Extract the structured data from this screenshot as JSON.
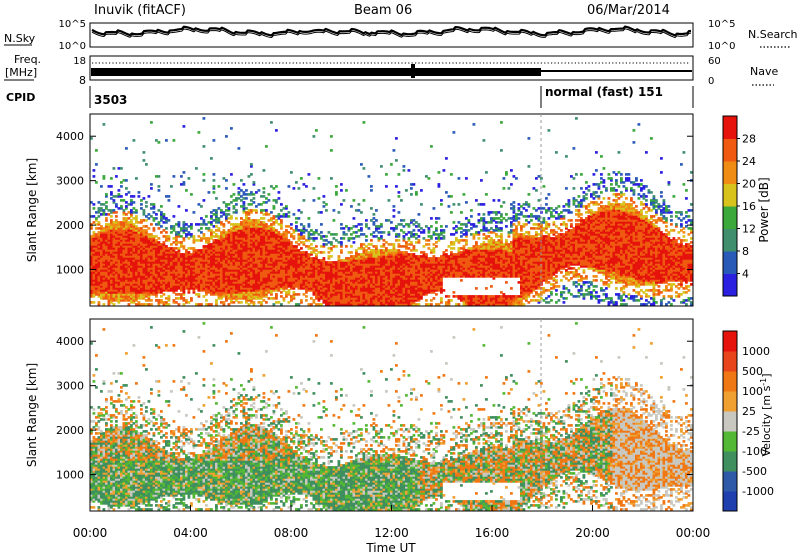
{
  "header": {
    "station": "Inuvik (fitACF)",
    "beam": "Beam 06",
    "date": "06/Mar/2014"
  },
  "panels": {
    "nsky_label": "N.Sky",
    "nsky_ticks": [
      "10^5",
      "10^0"
    ],
    "nsearch_label": "N.Search",
    "nsearch_ticks": [
      "10^5",
      "10^0"
    ],
    "freq_label": "Freq.",
    "freq_unit": "[MHz]",
    "freq_ticks": [
      "18",
      "8"
    ],
    "nave_label": "Nave",
    "nave_ticks": [
      "60",
      "0"
    ],
    "cpid_label": "CPID",
    "cpid_value": "3503",
    "cpid_mode": "normal (fast) 151"
  },
  "chart_data": [
    {
      "type": "heatmap",
      "title": "",
      "ylabel": "Slant Range [km]",
      "xlabel": "",
      "yticks": [
        "1000",
        "2000",
        "3000",
        "4000"
      ],
      "colorbar_label": "Power [dB]",
      "colorbar_ticks": [
        "4",
        "8",
        "12",
        "16",
        "20",
        "24",
        "28"
      ],
      "colorbar_colors": [
        "#2b1fe0",
        "#2a5ab8",
        "#3f8f6f",
        "#3aa83a",
        "#d8c21c",
        "#f08c14",
        "#ef5a10",
        "#e6120c"
      ],
      "range_km": [
        180,
        4500
      ]
    },
    {
      "type": "heatmap",
      "title": "",
      "ylabel": "Slant Range [km]",
      "xlabel": "Time UT",
      "yticks": [
        "1000",
        "2000",
        "3000",
        "4000"
      ],
      "xticks": [
        "00:00",
        "04:00",
        "08:00",
        "12:00",
        "16:00",
        "20:00",
        "00:00"
      ],
      "colorbar_label": "Velocity [m s",
      "colorbar_label_sup": "-1",
      "colorbar_label_end": "]",
      "colorbar_ticks": [
        "1000",
        "500",
        "100",
        "25",
        "-25",
        "-100",
        "-500",
        "-1000"
      ],
      "colorbar_colors": [
        "#1f3fae",
        "#2f5aa8",
        "#3f8f5f",
        "#53b833",
        "#c8c8c0",
        "#f0a030",
        "#f07814",
        "#e8461a",
        "#e6120c"
      ],
      "range_km": [
        180,
        4500
      ]
    }
  ]
}
